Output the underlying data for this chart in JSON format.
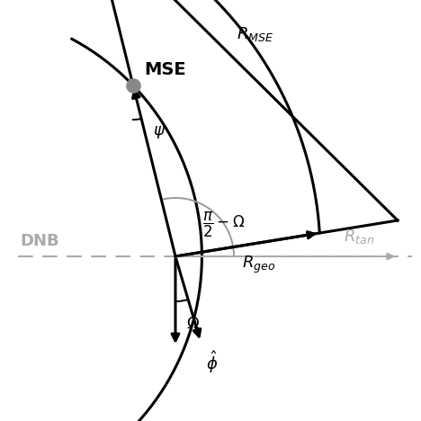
{
  "fig_size": [
    4.68,
    4.68
  ],
  "dpi": 100,
  "bg_color": "#ffffff",
  "colors": {
    "black": "#000000",
    "gray": "#999999",
    "light_gray": "#bbbbbb",
    "mse_dot": "#888888",
    "dnb_label": "#aaaaaa",
    "rtan_color": "#aaaaaa",
    "dashed_color": "#aaaaaa"
  },
  "labels": {
    "mse": "MSE",
    "dnb": "DNB",
    "r_mse": "$R_{MSE}$",
    "r_tan": "$R_{tan}$",
    "r_geo": "$R_{geo}$",
    "psi": "$\\psi$",
    "omega": "$\\Omega$",
    "half_pi_omega": "$\\dfrac{\\pi}{2} - \\Omega$",
    "phi_hat": "$\\hat{\\phi}$"
  }
}
